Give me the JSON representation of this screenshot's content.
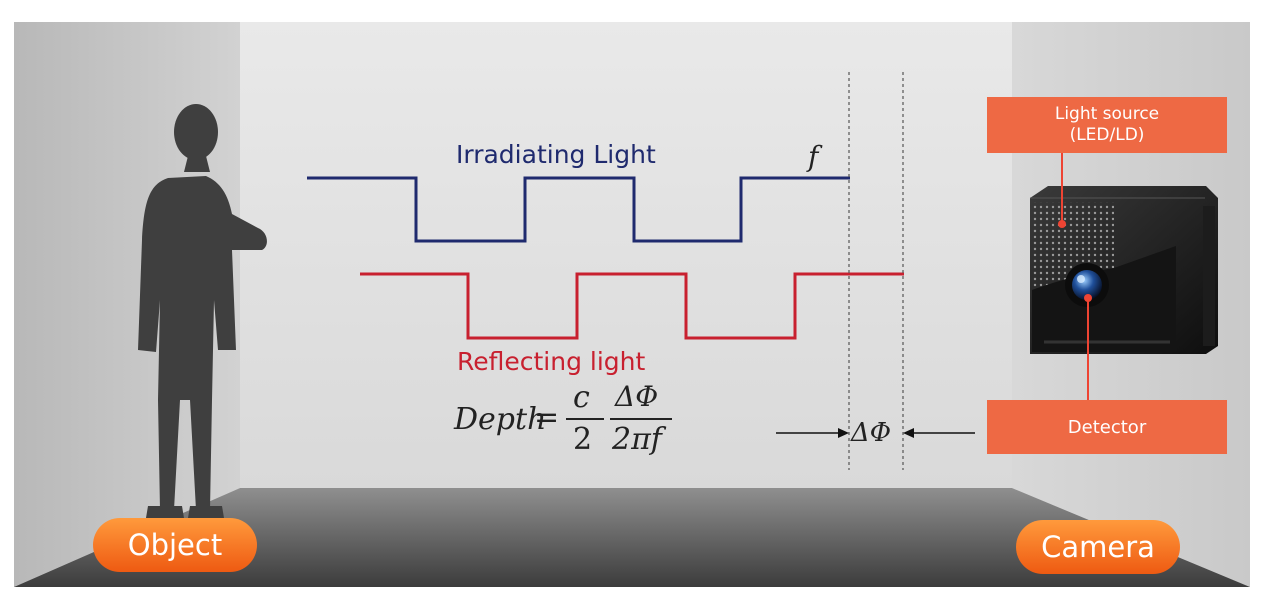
{
  "irradiating_label": "Irradiating Light",
  "reflecting_label": "Reflecting light",
  "frequency_symbol": "f",
  "formula": {
    "lhs": "Depth",
    "equals": "=",
    "frac1_num": "c",
    "frac1_den": "2",
    "frac2_num": "ΔΦ",
    "frac2_den": "2πf"
  },
  "phase_symbol": "ΔΦ",
  "object_label": "Object",
  "camera_label": "Camera",
  "light_source_line1": "Light source",
  "light_source_line2": "(LED/LD)",
  "detector_label": "Detector",
  "colors": {
    "irradiating": "#1f2a6e",
    "reflecting": "#c8202f",
    "accent": "#ee6944"
  }
}
